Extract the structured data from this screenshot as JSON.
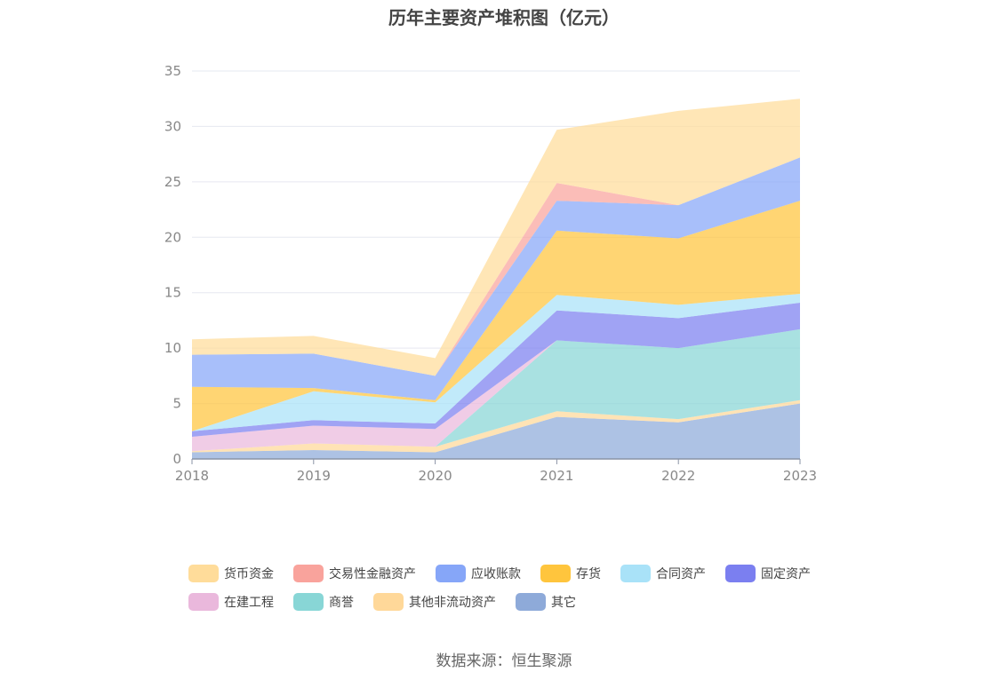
{
  "title": "历年主要资产堆积图（亿元）",
  "source": "数据来源：恒生聚源",
  "chart_data": {
    "type": "area",
    "stacked": true,
    "categories": [
      "2018",
      "2019",
      "2020",
      "2021",
      "2022",
      "2023"
    ],
    "ylim": [
      0,
      35
    ],
    "yticks": [
      "0",
      "5",
      "10",
      "15",
      "20",
      "25",
      "30",
      "35"
    ],
    "grid": true,
    "legend_placement": "bottom",
    "series": [
      {
        "name": "其它",
        "color": "#8eaad9",
        "values": [
          0.6,
          0.8,
          0.6,
          3.8,
          3.3,
          5.0
        ]
      },
      {
        "name": "其他非流动资产",
        "color": "#ffd899",
        "values": [
          0.1,
          0.6,
          0.5,
          0.5,
          0.3,
          0.3
        ]
      },
      {
        "name": "商誉",
        "color": "#88d6d6",
        "values": [
          0.0,
          0.0,
          0.0,
          6.4,
          6.4,
          6.4
        ]
      },
      {
        "name": "在建工程",
        "color": "#eab8dc",
        "values": [
          1.3,
          1.6,
          1.6,
          0.0,
          0.0,
          0.0
        ]
      },
      {
        "name": "固定资产",
        "color": "#7b7ff0",
        "values": [
          0.5,
          0.5,
          0.5,
          2.7,
          2.7,
          2.4
        ]
      },
      {
        "name": "合同资产",
        "color": "#a9e2f8",
        "values": [
          0.0,
          2.6,
          1.9,
          1.4,
          1.2,
          0.8
        ]
      },
      {
        "name": "存货",
        "color": "#ffc53d",
        "values": [
          4.0,
          0.3,
          0.2,
          5.8,
          6.0,
          8.4
        ]
      },
      {
        "name": "应收账款",
        "color": "#86a6f8",
        "values": [
          2.9,
          3.1,
          2.2,
          2.7,
          3.0,
          3.9
        ]
      },
      {
        "name": "交易性金融资产",
        "color": "#f9a39c",
        "values": [
          0.0,
          0.0,
          0.0,
          1.6,
          0.0,
          0.0
        ]
      },
      {
        "name": "货币资金",
        "color": "#ffdc9a",
        "values": [
          1.4,
          1.6,
          1.6,
          4.8,
          8.5,
          5.3
        ]
      }
    ]
  },
  "legend": {
    "row1": [
      {
        "name": "货币资金",
        "color": "#ffdc9a"
      },
      {
        "name": "交易性金融资产",
        "color": "#f9a39c"
      },
      {
        "name": "应收账款",
        "color": "#86a6f8"
      },
      {
        "name": "存货",
        "color": "#ffc53d"
      },
      {
        "name": "合同资产",
        "color": "#a9e2f8"
      },
      {
        "name": "固定资产",
        "color": "#7b7ff0"
      }
    ],
    "row2": [
      {
        "name": "在建工程",
        "color": "#eab8dc"
      },
      {
        "name": "商誉",
        "color": "#88d6d6"
      },
      {
        "name": "其他非流动资产",
        "color": "#ffd899"
      },
      {
        "name": "其它",
        "color": "#8eaad9"
      }
    ]
  }
}
